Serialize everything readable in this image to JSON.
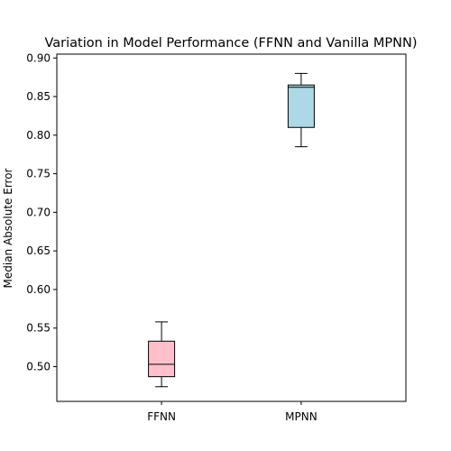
{
  "chart_data": {
    "type": "box",
    "title": "Variation in Model Performance (FFNN and Vanilla MPNN)",
    "xlabel": "",
    "ylabel": "Median Absolute Error",
    "categories": [
      "FFNN",
      "MPNN"
    ],
    "ylim": [
      0.455,
      0.905
    ],
    "yticks": [
      0.5,
      0.55,
      0.6,
      0.65,
      0.7,
      0.75,
      0.8,
      0.85,
      0.9
    ],
    "ytick_labels": [
      "0.50",
      "0.55",
      "0.60",
      "0.65",
      "0.70",
      "0.75",
      "0.80",
      "0.85",
      "0.90"
    ],
    "grid": false,
    "boxes": [
      {
        "category": "FFNN",
        "whisker_low": 0.474,
        "q1": 0.487,
        "median": 0.503,
        "q3": 0.533,
        "whisker_high": 0.558,
        "color": "#ffc0cb"
      },
      {
        "category": "MPNN",
        "whisker_low": 0.785,
        "q1": 0.81,
        "median": 0.862,
        "q3": 0.865,
        "whisker_high": 0.88,
        "color": "#add8e6"
      }
    ]
  }
}
